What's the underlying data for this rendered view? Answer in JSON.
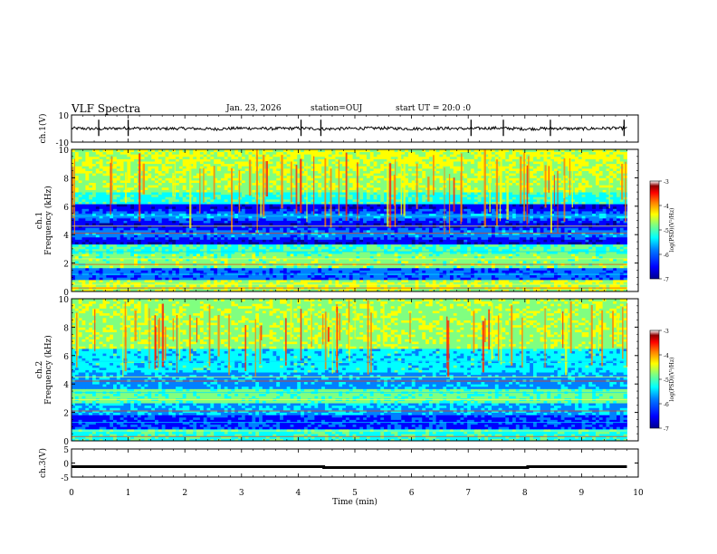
{
  "header": {
    "title": "VLF Spectra",
    "date": "Jan. 23, 2026",
    "station": "station=OUJ",
    "start": "start UT =  20:0  :0"
  },
  "colors": {
    "colormap": [
      "#000090",
      "#0000ff",
      "#0080ff",
      "#00ffff",
      "#80ff80",
      "#ffff00",
      "#ff8000",
      "#ff0000",
      "#900000",
      "#ffffff"
    ],
    "trace": "#000000"
  },
  "chart_data": [
    {
      "type": "line",
      "panel": "ch1-waveform",
      "ylabel": "ch.1(V)",
      "ylim": [
        -10,
        10
      ],
      "yticks": [
        "10",
        "-10"
      ],
      "x": [
        0,
        0.5,
        1,
        1.5,
        2,
        2.5,
        3,
        3.5,
        4,
        4.5,
        5,
        5.5,
        6,
        6.5,
        7,
        7.5,
        8,
        8.5,
        9,
        9.5,
        9.8
      ],
      "y": [
        0.2,
        -0.3,
        0.4,
        -0.2,
        0.1,
        -0.4,
        0.3,
        -0.1,
        0.2,
        -0.3,
        0.1,
        0.3,
        -0.2,
        0.2,
        -0.1,
        0.4,
        -0.3,
        0.1,
        -0.2,
        0.3,
        0.1
      ],
      "spikes_x": [
        0.48,
        1.0,
        4.05,
        4.4,
        7.05,
        7.62,
        8.45,
        9.75
      ]
    },
    {
      "type": "heatmap",
      "panel": "ch1-spectrogram",
      "ylabel_line1": "ch.1",
      "ylabel_line2": "Frequency (kHz)",
      "ylim": [
        0,
        10
      ],
      "yticks": [
        "0",
        "2",
        "4",
        "6",
        "8",
        "10"
      ],
      "xlim": [
        0,
        9.8
      ],
      "colorbar": {
        "label": "log(PSD)(V²/Hz)",
        "range": [
          -7,
          -3
        ],
        "ticks": [
          "-3",
          "-4",
          "-5",
          "-6",
          "-7"
        ]
      }
    },
    {
      "type": "heatmap",
      "panel": "ch2-spectrogram",
      "ylabel_line1": "ch.2",
      "ylabel_line2": "Frequency (kHz)",
      "ylim": [
        0,
        10
      ],
      "yticks": [
        "0",
        "2",
        "4",
        "6",
        "8",
        "10"
      ],
      "xlim": [
        0,
        9.8
      ],
      "colorbar": {
        "label": "log(PSD)(V²/Hz)",
        "range": [
          -7,
          -3
        ],
        "ticks": [
          "-3",
          "-4",
          "-5",
          "-6",
          "-7"
        ]
      }
    },
    {
      "type": "line",
      "panel": "ch3-waveform",
      "ylabel": "ch.3(V)",
      "ylim": [
        -5,
        5
      ],
      "yticks": [
        "5",
        "0",
        "-5"
      ],
      "x": [
        0,
        4.45,
        4.45,
        8.05,
        8.05,
        9.8
      ],
      "y": [
        -1.3,
        -1.3,
        -1.6,
        -1.6,
        -1.3,
        -1.3
      ]
    }
  ],
  "xaxis": {
    "label": "Time (min)",
    "range": [
      0,
      10
    ],
    "ticks": [
      "0",
      "1",
      "2",
      "3",
      "4",
      "5",
      "6",
      "7",
      "8",
      "9",
      "10"
    ]
  }
}
